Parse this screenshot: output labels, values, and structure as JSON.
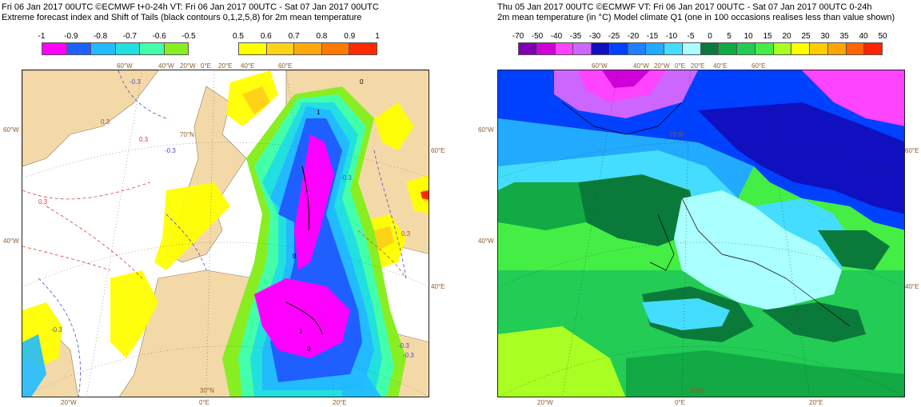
{
  "left": {
    "header_line1": "Fri 06 Jan 2017 00UTC ©ECMWF t+0-24h  VT: Fri 06 Jan 2017 00UTC - Sat 07 Jan 2017 00UTC",
    "header_line2": "Extreme forecast index and Shift of Tails (black contours 0,1,2,5,8) for 2m mean temperature",
    "legend_neg": {
      "labels": [
        "-1",
        "-0.9",
        "-0.8",
        "-0.7",
        "-0.6",
        "-0.5"
      ],
      "colors": [
        "#ff00ff",
        "#1f5fff",
        "#22bbff",
        "#22e0e0",
        "#44ffaa",
        "#88ee22"
      ]
    },
    "legend_pos": {
      "labels": [
        "0.5",
        "0.6",
        "0.7",
        "0.8",
        "0.9",
        "1"
      ],
      "colors": [
        "#ffff00",
        "#ffd21a",
        "#ffa90f",
        "#ff7a00",
        "#ff2a00"
      ]
    },
    "top_lon_labels": [
      "60°W",
      "40°W",
      "20°W",
      "0°E",
      "20°E",
      "40°E",
      "60°E"
    ],
    "lat_labels": [
      "60°W",
      "40°W"
    ],
    "right_lat_labels": [
      "60°E",
      "40°E"
    ],
    "inner_lat_labels": [
      "70°N",
      "30°N"
    ],
    "bottom_lon_labels": [
      "20°W",
      "0°E",
      "20°E"
    ],
    "contour_labels": [
      "-0.3",
      "-0.3",
      "-0.3",
      "-0.3",
      "0.3",
      "0.3",
      "0.3",
      "-0.3",
      "0.3",
      "1",
      "1",
      "0",
      "0",
      "0",
      "-0.3"
    ]
  },
  "right": {
    "header_line1": "Thu 05 Jan 2017 00UTC ©ECMWF VT: Fri 06 Jan 2017 00UTC - Sat 07 Jan 2017 00UTC   0-24h",
    "header_line2": "2m mean temperature (in °C)  Model climate Q1 (one in 100 occasions realises less than value shown)",
    "legend": {
      "labels": [
        "-70",
        "-50",
        "-40",
        "-35",
        "-30",
        "-25",
        "-20",
        "-15",
        "-10",
        "-5",
        "0",
        "5",
        "10",
        "15",
        "20",
        "25",
        "30",
        "35",
        "40",
        "50"
      ],
      "colors": [
        "#8000b0",
        "#d000d8",
        "#ff44ff",
        "#cc66ff",
        "#1010c0",
        "#0040ff",
        "#2080ff",
        "#22aaff",
        "#44ddff",
        "#aaffff",
        "#0a7a3a",
        "#11aa44",
        "#22cc55",
        "#44ee44",
        "#aaff22",
        "#ffff00",
        "#ffcc00",
        "#ffa500",
        "#ff6600",
        "#ff2200"
      ]
    },
    "top_lon_labels": [
      "60°W",
      "40°W",
      "20°W",
      "0°E",
      "20°E",
      "40°E",
      "60°E"
    ],
    "lat_labels": [
      "60°W",
      "40°W"
    ],
    "right_lat_labels": [
      "60°E",
      "40°E"
    ],
    "inner_lat_labels": [
      "70°N",
      "30°N"
    ],
    "bottom_lon_labels": [
      "20°W",
      "0°E",
      "20°E"
    ]
  }
}
